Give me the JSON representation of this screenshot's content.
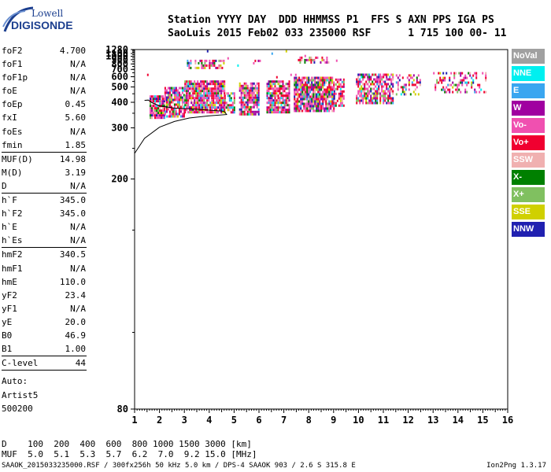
{
  "logo": {
    "line1": "Lowell",
    "line2": "DIGISONDE"
  },
  "header": {
    "line1": "Station YYYY DAY  DDD HHMMSS P1  FFS S AXN PPS IGA PS",
    "line2": "SaoLuis 2015 Feb02 033 235000 RSF      1 715 100 00- 11"
  },
  "params": [
    {
      "name": "foF2",
      "value": "4.700"
    },
    {
      "name": "foF1",
      "value": "N/A"
    },
    {
      "name": "foF1p",
      "value": "N/A"
    },
    {
      "name": "foE",
      "value": "N/A"
    },
    {
      "name": "foEp",
      "value": "0.45"
    },
    {
      "name": "fxI",
      "value": "5.60"
    },
    {
      "name": "foEs",
      "value": "N/A"
    },
    {
      "name": "fmin",
      "value": "1.85"
    },
    {
      "name": "MUF(D)",
      "value": "14.98"
    },
    {
      "name": "M(D)",
      "value": "3.19"
    },
    {
      "name": "D",
      "value": "N/A"
    },
    {
      "name": "h`F",
      "value": "345.0"
    },
    {
      "name": "h`F2",
      "value": "345.0"
    },
    {
      "name": "h`E",
      "value": "N/A"
    },
    {
      "name": "h`Es",
      "value": "N/A"
    },
    {
      "name": "hmF2",
      "value": "340.5"
    },
    {
      "name": "hmF1",
      "value": "N/A"
    },
    {
      "name": "hmE",
      "value": "110.0"
    },
    {
      "name": "yF2",
      "value": "23.4"
    },
    {
      "name": "yF1",
      "value": "N/A"
    },
    {
      "name": "yE",
      "value": "20.0"
    },
    {
      "name": "B0",
      "value": "46.9"
    },
    {
      "name": "B1",
      "value": "1.00"
    },
    {
      "name": "C-level",
      "value": "44"
    }
  ],
  "auto": {
    "line1": "Auto:",
    "line2": "Artist5",
    "line3": "500200"
  },
  "muf_table": {
    "d_row": "D    100  200  400  600  800 1000 1500 3000 [km]",
    "muf_row": "MUF  5.0  5.1  5.3  5.7  6.2  7.0  9.2 15.0 [MHz]"
  },
  "footer": {
    "left": "SAAOK_2015033235000.RSF / 300fx256h 50 kHz 5.0 km / DPS-4 SAAOK 903 / 2.6 S 315.8 E",
    "right": "Ion2Png 1.3.17"
  },
  "legend": [
    {
      "label": "NoVal",
      "color": "#a0a0a0"
    },
    {
      "label": "NNE",
      "color": "#00f0f0"
    },
    {
      "label": "E",
      "color": "#3aa6f0"
    },
    {
      "label": "W",
      "color": "#a000a0"
    },
    {
      "label": "Vo-",
      "color": "#f050b0"
    },
    {
      "label": "Vo+",
      "color": "#f00030"
    },
    {
      "label": "SSW",
      "color": "#f0b0b0"
    },
    {
      "label": "X-",
      "color": "#008000"
    },
    {
      "label": "X+",
      "color": "#80c060"
    },
    {
      "label": "SSE",
      "color": "#d0d000"
    },
    {
      "label": "NNW",
      "color": "#2020b0"
    }
  ],
  "chart_data": {
    "type": "scatter",
    "x_ticks": [
      "1",
      "2",
      "3",
      "4",
      "5",
      "6",
      "7",
      "8",
      "9",
      "10",
      "11",
      "12",
      "13",
      "14",
      "15",
      "16"
    ],
    "y_ticks": [
      "80",
      "200",
      "300",
      "400",
      "500",
      "600",
      "700",
      "800",
      "900",
      "1000",
      "1100",
      "1280"
    ],
    "xlim": [
      1,
      16
    ],
    "ylim": [
      80,
      1280
    ],
    "y_scale": "reciprocal",
    "clusters": [
      {
        "x": [
          1.6,
          2.2
        ],
        "y": [
          330,
          440
        ],
        "density": 0.9
      },
      {
        "x": [
          2.2,
          3.0
        ],
        "y": [
          340,
          500
        ],
        "density": 0.8
      },
      {
        "x": [
          3.0,
          4.6
        ],
        "y": [
          350,
          560
        ],
        "density": 0.9
      },
      {
        "x": [
          4.6,
          5.0
        ],
        "y": [
          350,
          460
        ],
        "density": 0.6
      },
      {
        "x": [
          5.2,
          6.0
        ],
        "y": [
          350,
          540
        ],
        "density": 0.85
      },
      {
        "x": [
          6.3,
          7.2
        ],
        "y": [
          350,
          560
        ],
        "density": 0.85
      },
      {
        "x": [
          7.4,
          9.0
        ],
        "y": [
          360,
          600
        ],
        "density": 0.9
      },
      {
        "x": [
          9.0,
          9.4
        ],
        "y": [
          380,
          580
        ],
        "density": 0.6
      },
      {
        "x": [
          9.9,
          11.4
        ],
        "y": [
          400,
          640
        ],
        "density": 0.7
      },
      {
        "x": [
          11.5,
          12.5
        ],
        "y": [
          450,
          630
        ],
        "density": 0.35
      },
      {
        "x": [
          13.0,
          15.1
        ],
        "y": [
          460,
          660
        ],
        "density": 0.3
      },
      {
        "x": [
          3.1,
          4.6
        ],
        "y": [
          730,
          900
        ],
        "density": 0.5
      },
      {
        "x": [
          7.5,
          8.8
        ],
        "y": [
          850,
          990
        ],
        "density": 0.4
      },
      {
        "x": [
          5.0,
          6.3
        ],
        "y": [
          780,
          900
        ],
        "density": 0.08
      },
      {
        "x": [
          1.5,
          12.0
        ],
        "y": [
          600,
          1250
        ],
        "density": 0.005
      }
    ],
    "trace": [
      {
        "x": 1.0,
        "y": 240
      },
      {
        "x": 1.4,
        "y": 272
      },
      {
        "x": 2.0,
        "y": 302
      },
      {
        "x": 2.6,
        "y": 320
      },
      {
        "x": 3.2,
        "y": 332
      },
      {
        "x": 4.0,
        "y": 340
      },
      {
        "x": 4.7,
        "y": 345
      },
      {
        "x": 4.6,
        "y": 358
      },
      {
        "x": 3.5,
        "y": 367
      },
      {
        "x": 2.6,
        "y": 372
      },
      {
        "x": 2.0,
        "y": 382
      },
      {
        "x": 1.7,
        "y": 398
      },
      {
        "x": 1.55,
        "y": 412
      },
      {
        "x": 1.4,
        "y": 410
      }
    ]
  }
}
